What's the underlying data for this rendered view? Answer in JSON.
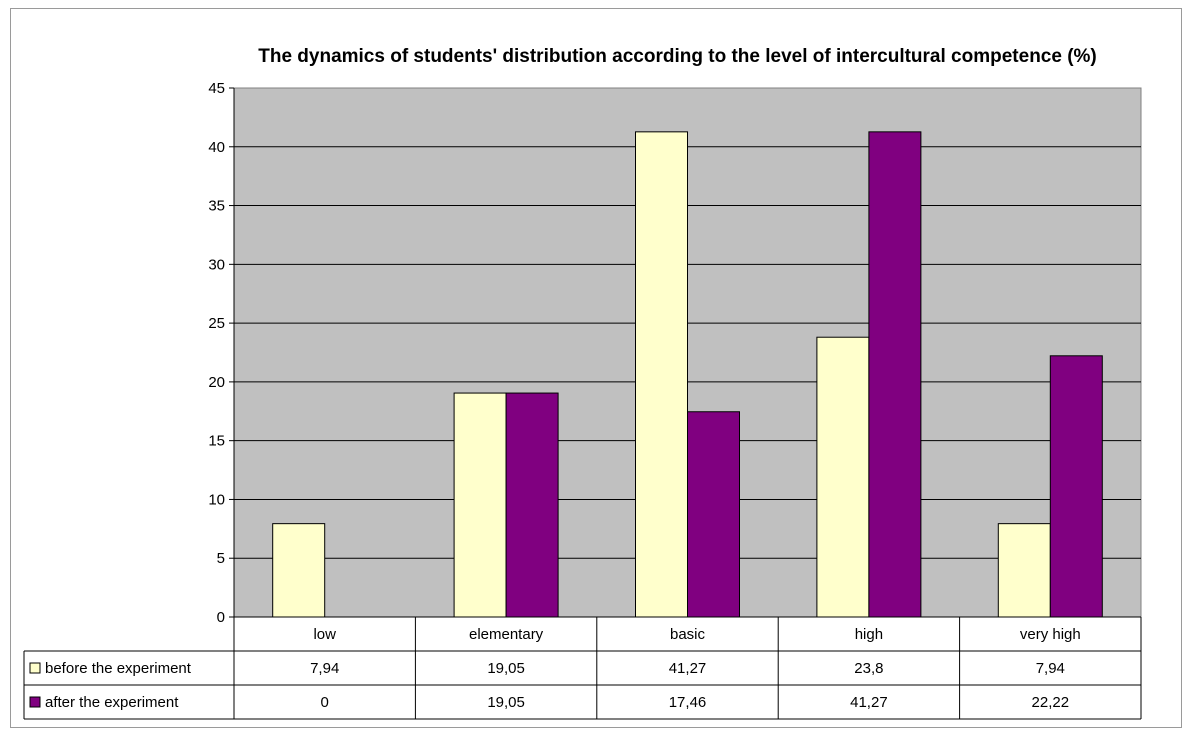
{
  "chart_data": {
    "type": "bar",
    "title": "The dynamics of students' distribution according to the level of intercultural competence (%)",
    "categories": [
      "low",
      "elementary",
      "basic",
      "high",
      "very high"
    ],
    "series": [
      {
        "name": "before the experiment",
        "values": [
          7.94,
          19.05,
          41.27,
          23.8,
          7.94
        ],
        "labels": [
          "7,94",
          "19,05",
          "41,27",
          "23,8",
          "7,94"
        ],
        "color": "#ffffcc"
      },
      {
        "name": "after the experiment",
        "values": [
          0,
          19.05,
          17.46,
          41.27,
          22.22
        ],
        "labels": [
          "0",
          "19,05",
          "17,46",
          "41,27",
          "22,22"
        ],
        "color": "#800080"
      }
    ],
    "ylim": [
      0,
      45
    ],
    "yticks": [
      "0",
      "5",
      "10",
      "15",
      "20",
      "25",
      "30",
      "35",
      "40",
      "45"
    ],
    "grid": true,
    "plot_background": "#c0c0c0",
    "legend": "data-table"
  }
}
